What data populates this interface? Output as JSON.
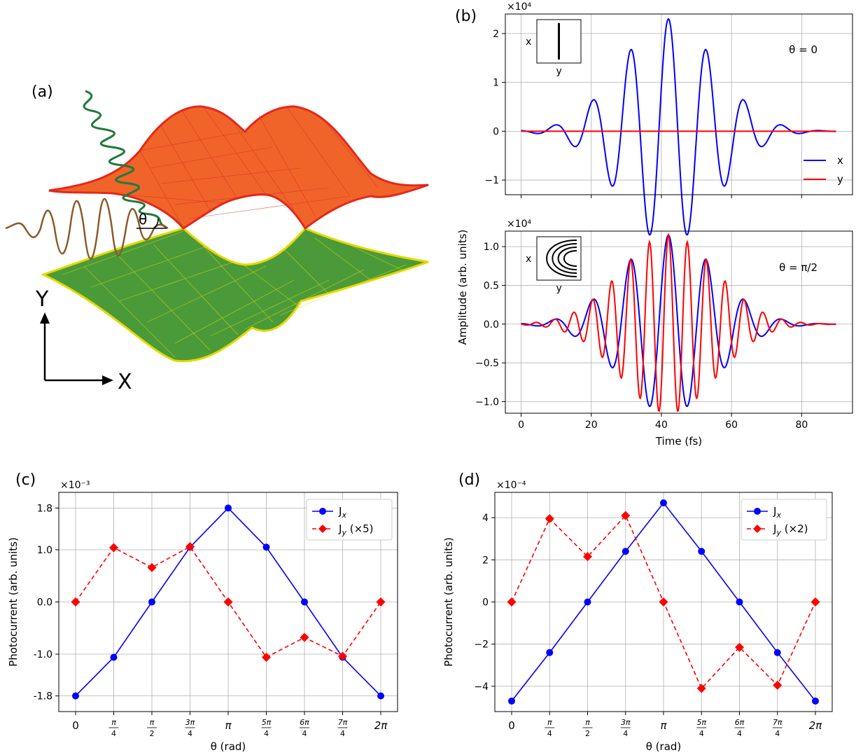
{
  "panel_labels": {
    "a": "(a)",
    "b": "(b)",
    "c": "(c)",
    "d": "(d)"
  },
  "axis_arrows": {
    "y": "Y",
    "x": "X"
  },
  "theta_symbol": "θ",
  "colors": {
    "blue": "#0000ff",
    "red": "#ff0000",
    "green": "#1e7b3a",
    "brown": "#8b5a2b",
    "upper_band": "#ee3322",
    "lower_band": "#3f8f2f",
    "lower_band_edge": "#f0e000"
  },
  "chart_data": [
    {
      "id": "b-top",
      "type": "line",
      "annotation": "θ = 0",
      "multiplier": "×10⁴",
      "inset_labels": {
        "x": "x",
        "y": "y"
      },
      "xlim": [
        -4.5,
        94.5
      ],
      "ylim": [
        -1.3,
        2.4
      ],
      "xticks": [
        0,
        20,
        40,
        60,
        80
      ],
      "yticks": [
        -1,
        0,
        1,
        2
      ],
      "ytick_labels": [
        "−1",
        "0",
        "1",
        "2"
      ],
      "legend": [
        "x",
        "y"
      ],
      "grid": true,
      "pulse": {
        "center": 42,
        "width": 19,
        "period": 10.8
      },
      "series": [
        {
          "name": "x",
          "color": "#0000ff",
          "amp": 2.3,
          "phase": 0
        },
        {
          "name": "y",
          "color": "#ff0000",
          "amp": 0,
          "phase": 0
        }
      ]
    },
    {
      "id": "b-bottom",
      "type": "line",
      "annotation": "θ = π/2",
      "multiplier": "×10⁴",
      "inset_labels": {
        "x": "x",
        "y": "y"
      },
      "xlim": [
        -4.5,
        94.5
      ],
      "ylim": [
        -1.15,
        1.2
      ],
      "xticks": [
        0,
        20,
        40,
        60,
        80
      ],
      "xtick_labels": [
        "0",
        "20",
        "40",
        "60",
        "80"
      ],
      "yticks": [
        -1.0,
        -0.5,
        0.0,
        0.5,
        1.0
      ],
      "ytick_labels": [
        "−1.0",
        "−0.5",
        "0.0",
        "0.5",
        "1.0"
      ],
      "xlabel": "Time (fs)",
      "grid": true,
      "pulse": {
        "center": 42,
        "width": 19,
        "period": 10.8
      },
      "series": [
        {
          "name": "x",
          "color": "#0000ff",
          "amp": 1.15,
          "phase": 0,
          "period": 10.8
        },
        {
          "name": "y",
          "color": "#ff0000",
          "amp": 1.15,
          "phase": 0,
          "period": 5.4
        }
      ]
    },
    {
      "id": "c",
      "type": "line",
      "multiplier": "×10⁻³",
      "xlabel": "θ (rad)",
      "ylabel": "Photocurrent (arb. units)",
      "categories": [
        "0",
        "π/4",
        "π/2",
        "3π/4",
        "π",
        "5π/4",
        "6π/4",
        "7π/4",
        "2π"
      ],
      "ylim": [
        -2.1,
        2.1
      ],
      "yticks": [
        -1.8,
        -1.0,
        0.0,
        1.0,
        1.8
      ],
      "ytick_labels": [
        "-1.8",
        "-1.0",
        "0.0",
        "1.0",
        "1.8"
      ],
      "legend_position": "top-right",
      "grid": true,
      "series": [
        {
          "name": "Jx",
          "color": "#0000ff",
          "marker": "circle",
          "style": "solid",
          "values": [
            -1.8,
            -1.06,
            0,
            1.05,
            1.8,
            1.05,
            0,
            -1.06,
            -1.8
          ]
        },
        {
          "name": "Jy (×5)",
          "color": "#ff0000",
          "marker": "diamond",
          "style": "dashed",
          "values": [
            0,
            1.04,
            0.66,
            1.06,
            0,
            -1.06,
            -0.68,
            -1.04,
            0
          ]
        }
      ]
    },
    {
      "id": "d",
      "type": "line",
      "multiplier": "×10⁻⁴",
      "xlabel": "θ (rad)",
      "ylabel": "Photocurrent (arb. units)",
      "categories": [
        "0",
        "π/4",
        "π/2",
        "3π/4",
        "π",
        "5π/4",
        "6π/4",
        "7π/4",
        "2π"
      ],
      "ylim": [
        -5.2,
        5.2
      ],
      "yticks": [
        -4,
        -2,
        0,
        2,
        4
      ],
      "ytick_labels": [
        "−4",
        "−2",
        "0",
        "2",
        "4"
      ],
      "legend_position": "top-right",
      "grid": true,
      "series": [
        {
          "name": "Jx",
          "color": "#0000ff",
          "marker": "circle",
          "style": "solid",
          "values": [
            -4.7,
            -2.4,
            0,
            2.4,
            4.7,
            2.4,
            0,
            -2.4,
            -4.7
          ]
        },
        {
          "name": "Jy (×2)",
          "color": "#ff0000",
          "marker": "diamond",
          "style": "dashed",
          "values": [
            0,
            3.95,
            2.15,
            4.1,
            0,
            -4.1,
            -2.15,
            -3.95,
            0
          ]
        }
      ]
    }
  ],
  "shared_ylabel_b": "Amplitude  (arb. units)"
}
